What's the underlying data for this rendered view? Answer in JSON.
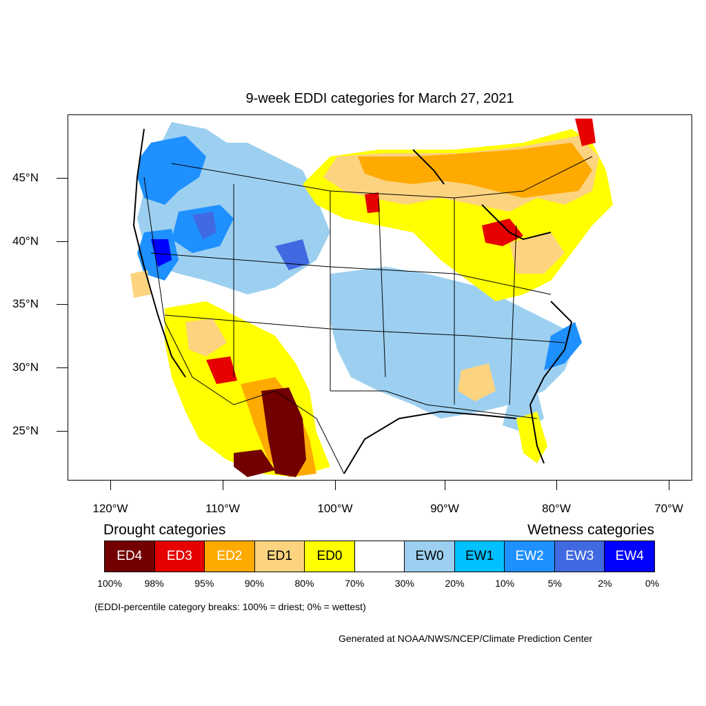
{
  "title": "9-week EDDI categories for March 27, 2021",
  "axes": {
    "lat_labels": [
      "45°N",
      "40°N",
      "35°N",
      "30°N",
      "25°N"
    ],
    "lon_labels": [
      "120°W",
      "110°W",
      "100°W",
      "90°W",
      "80°W",
      "70°W"
    ]
  },
  "legend": {
    "drought_heading": "Drought categories",
    "wetness_heading": "Wetness categories",
    "categories": [
      {
        "label": "ED4",
        "color": "#730000"
      },
      {
        "label": "ED3",
        "color": "#e60000"
      },
      {
        "label": "ED2",
        "color": "#ffaa00"
      },
      {
        "label": "ED1",
        "color": "#fcd37f"
      },
      {
        "label": "ED0",
        "color": "#ffff00"
      },
      {
        "label": "",
        "color": "#ffffff"
      },
      {
        "label": "EW0",
        "color": "#9dd0f0"
      },
      {
        "label": "EW1",
        "color": "#00c0ff"
      },
      {
        "label": "EW2",
        "color": "#1e90ff"
      },
      {
        "label": "EW3",
        "color": "#4169e1"
      },
      {
        "label": "EW4",
        "color": "#0000ff"
      }
    ],
    "percentiles": [
      "100%",
      "98%",
      "95%",
      "90%",
      "80%",
      "70%",
      "30%",
      "20%",
      "10%",
      "5%",
      "2%",
      "0%"
    ]
  },
  "note": "(EDDI-percentile category breaks: 100% = driest; 0% = wettest)",
  "credit": "Generated at NOAA/NWS/NCEP/Climate Prediction Center"
}
